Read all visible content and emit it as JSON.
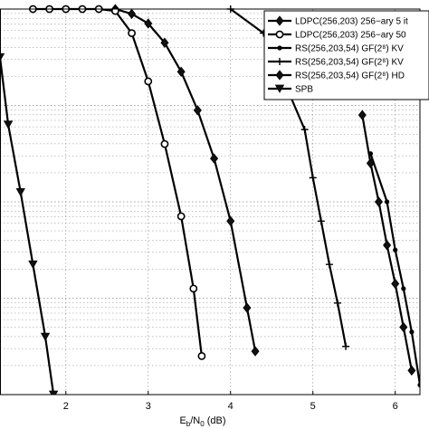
{
  "chart_data": {
    "type": "line",
    "title": "",
    "xlabel": "",
    "ylabel": "",
    "xlim": [
      1.2,
      6.3
    ],
    "ylim": [
      -4,
      0
    ],
    "grid": true,
    "x_ticks": [
      2,
      3,
      4,
      5,
      6
    ],
    "legend": {
      "placement": "top-right",
      "entries": [
        "LDPC(256,203) 256−ary 5 it",
        "LDPC(256,203) 256−ary 50",
        "RS(256,203,54) GF(2⁸) KV",
        "RS(256,203,54) GF(2⁸) KV",
        "RS(256,203,54) GF(2⁸) HD",
        "SPB"
      ]
    },
    "series": [
      {
        "marker": "diamond",
        "x": [
          2.6,
          2.8,
          3.0,
          3.2,
          3.4,
          3.6,
          3.8,
          4.0,
          4.2,
          4.3
        ],
        "y": [
          0,
          -0.05,
          -0.15,
          -0.35,
          -0.65,
          -1.05,
          -1.55,
          -2.2,
          -3.1,
          -3.55
        ]
      },
      {
        "marker": "circle",
        "x": [
          1.6,
          1.8,
          2.0,
          2.2,
          2.4,
          2.6,
          2.8,
          3.0,
          3.2,
          3.4,
          3.55,
          3.65
        ],
        "y": [
          0,
          0,
          0,
          0,
          0,
          -0.02,
          -0.25,
          -0.75,
          -1.4,
          -2.15,
          -2.9,
          -3.6
        ]
      },
      {
        "marker": "dot",
        "x": [
          5.7,
          5.9,
          6.0,
          6.1,
          6.2,
          6.3
        ],
        "y": [
          -1.5,
          -2.0,
          -2.5,
          -2.9,
          -3.35,
          -3.9
        ]
      },
      {
        "marker": "plus",
        "x": [
          4.0,
          4.4,
          4.9,
          5.0,
          5.1,
          5.2,
          5.3,
          5.4
        ],
        "y": [
          0,
          -0.25,
          -1.25,
          -1.75,
          -2.2,
          -2.65,
          -3.05,
          -3.5
        ]
      },
      {
        "marker": "diamond2",
        "x": [
          5.6,
          5.7,
          5.8,
          5.9,
          6.0,
          6.1,
          6.2
        ],
        "y": [
          -1.1,
          -1.6,
          -2.0,
          -2.45,
          -2.85,
          -3.3,
          -3.75
        ]
      },
      {
        "marker": "triangle",
        "x": [
          1.2,
          1.3,
          1.45,
          1.6,
          1.75,
          1.85
        ],
        "y": [
          -0.5,
          -1.2,
          -1.9,
          -2.65,
          -3.4,
          -4.0
        ]
      }
    ]
  }
}
